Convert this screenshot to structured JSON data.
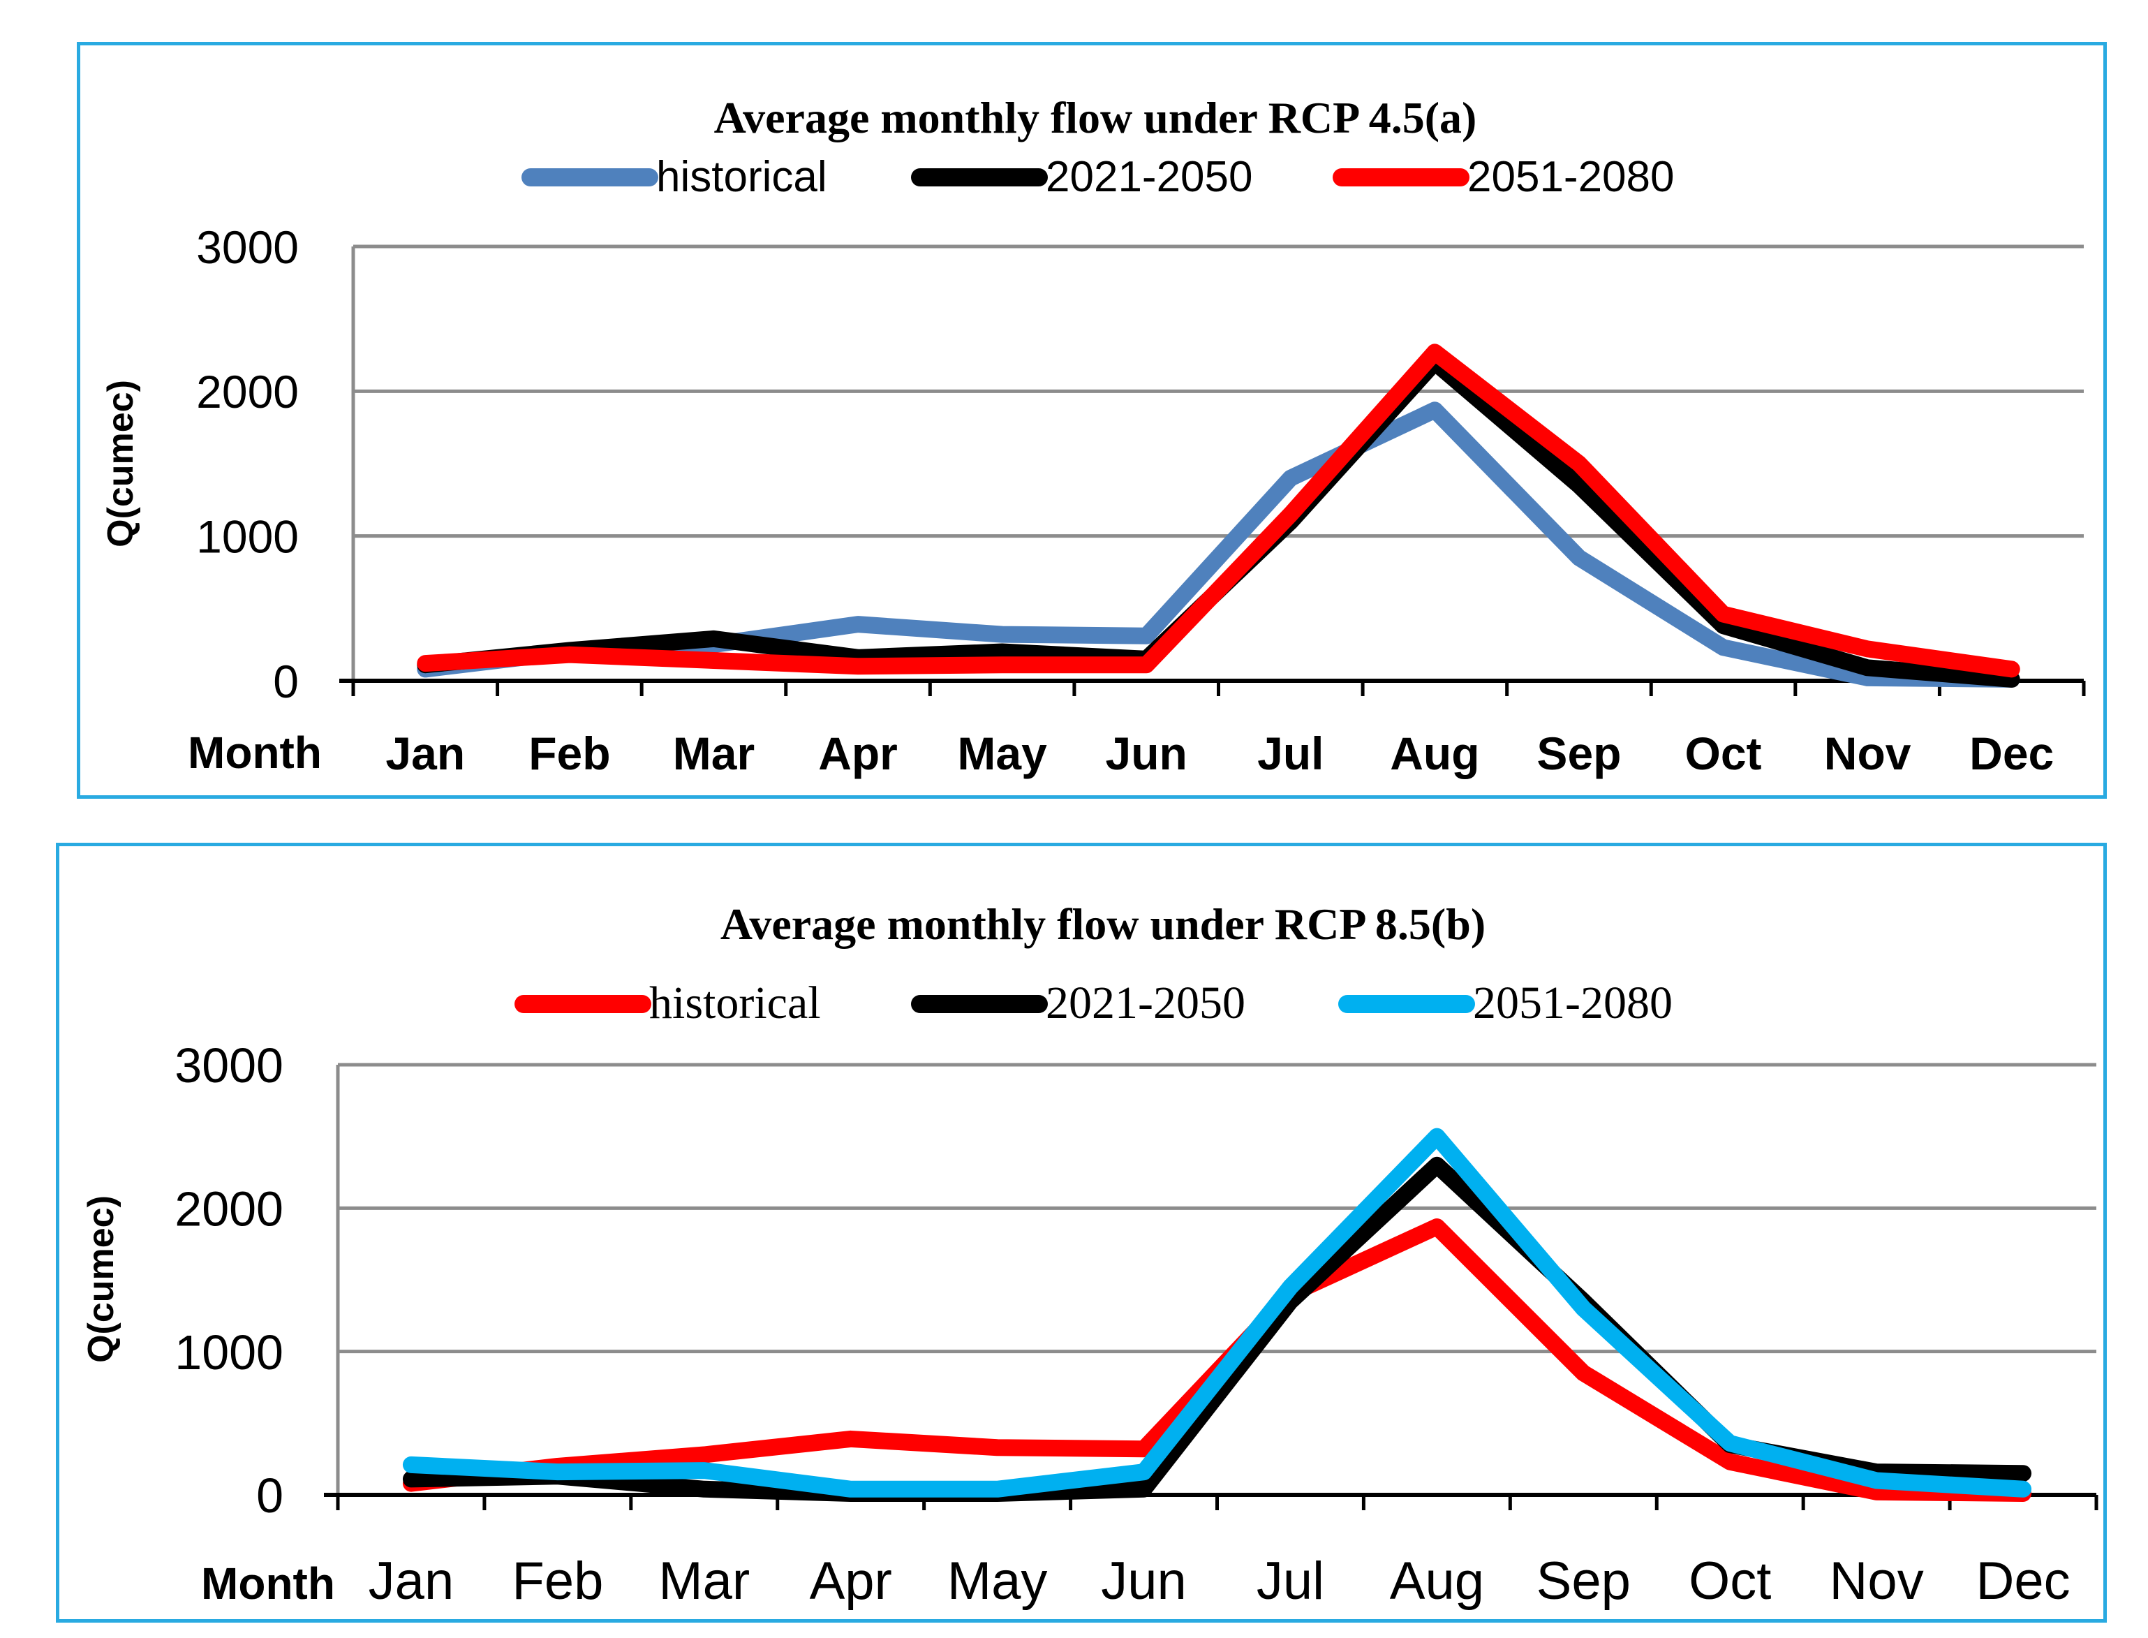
{
  "chart_data": [
    {
      "type": "line",
      "title": "Average monthly flow under RCP 4.5(a)",
      "xlabel": "Month",
      "ylabel": "Q(cumec)",
      "ylim": [
        0,
        3000
      ],
      "yticks": [
        0,
        1000,
        2000,
        3000
      ],
      "grid": true,
      "legend": "top-center",
      "categories": [
        "Jan",
        "Feb",
        "Mar",
        "Apr",
        "May",
        "Jun",
        "Jul",
        "Aug",
        "Sep",
        "Oct",
        "Nov",
        "Dec"
      ],
      "series": [
        {
          "name": "historical",
          "color": "#4f81bd",
          "values": [
            80,
            200,
            250,
            390,
            320,
            310,
            1400,
            1870,
            850,
            230,
            20,
            10
          ]
        },
        {
          "name": "2021-2050",
          "color": "#000000",
          "values": [
            110,
            210,
            290,
            160,
            200,
            150,
            1100,
            2200,
            1350,
            380,
            90,
            10
          ]
        },
        {
          "name": "2051-2080",
          "color": "#ff0000",
          "values": [
            120,
            180,
            140,
            100,
            110,
            110,
            1150,
            2270,
            1500,
            460,
            220,
            80
          ]
        }
      ]
    },
    {
      "type": "line",
      "title": "Average monthly flow under RCP 8.5(b)",
      "xlabel": "Month",
      "ylabel": "Q(cumec)",
      "ylim": [
        0,
        3000
      ],
      "yticks": [
        0,
        1000,
        2000,
        3000
      ],
      "grid": true,
      "legend": "top-center",
      "categories": [
        "Jan",
        "Feb",
        "Mar",
        "Apr",
        "May",
        "Jun",
        "Jul",
        "Aug",
        "Sep",
        "Oct",
        "Nov",
        "Dec"
      ],
      "series": [
        {
          "name": "historical",
          "color": "#ff0000",
          "values": [
            80,
            200,
            280,
            390,
            330,
            320,
            1400,
            1870,
            850,
            230,
            20,
            10
          ]
        },
        {
          "name": "2021-2050",
          "color": "#000000",
          "values": [
            110,
            130,
            40,
            10,
            10,
            40,
            1350,
            2300,
            1350,
            350,
            160,
            150
          ]
        },
        {
          "name": "2051-2080",
          "color": "#00b0f0",
          "values": [
            210,
            160,
            170,
            40,
            40,
            160,
            1450,
            2500,
            1300,
            360,
            100,
            40
          ]
        }
      ]
    }
  ]
}
